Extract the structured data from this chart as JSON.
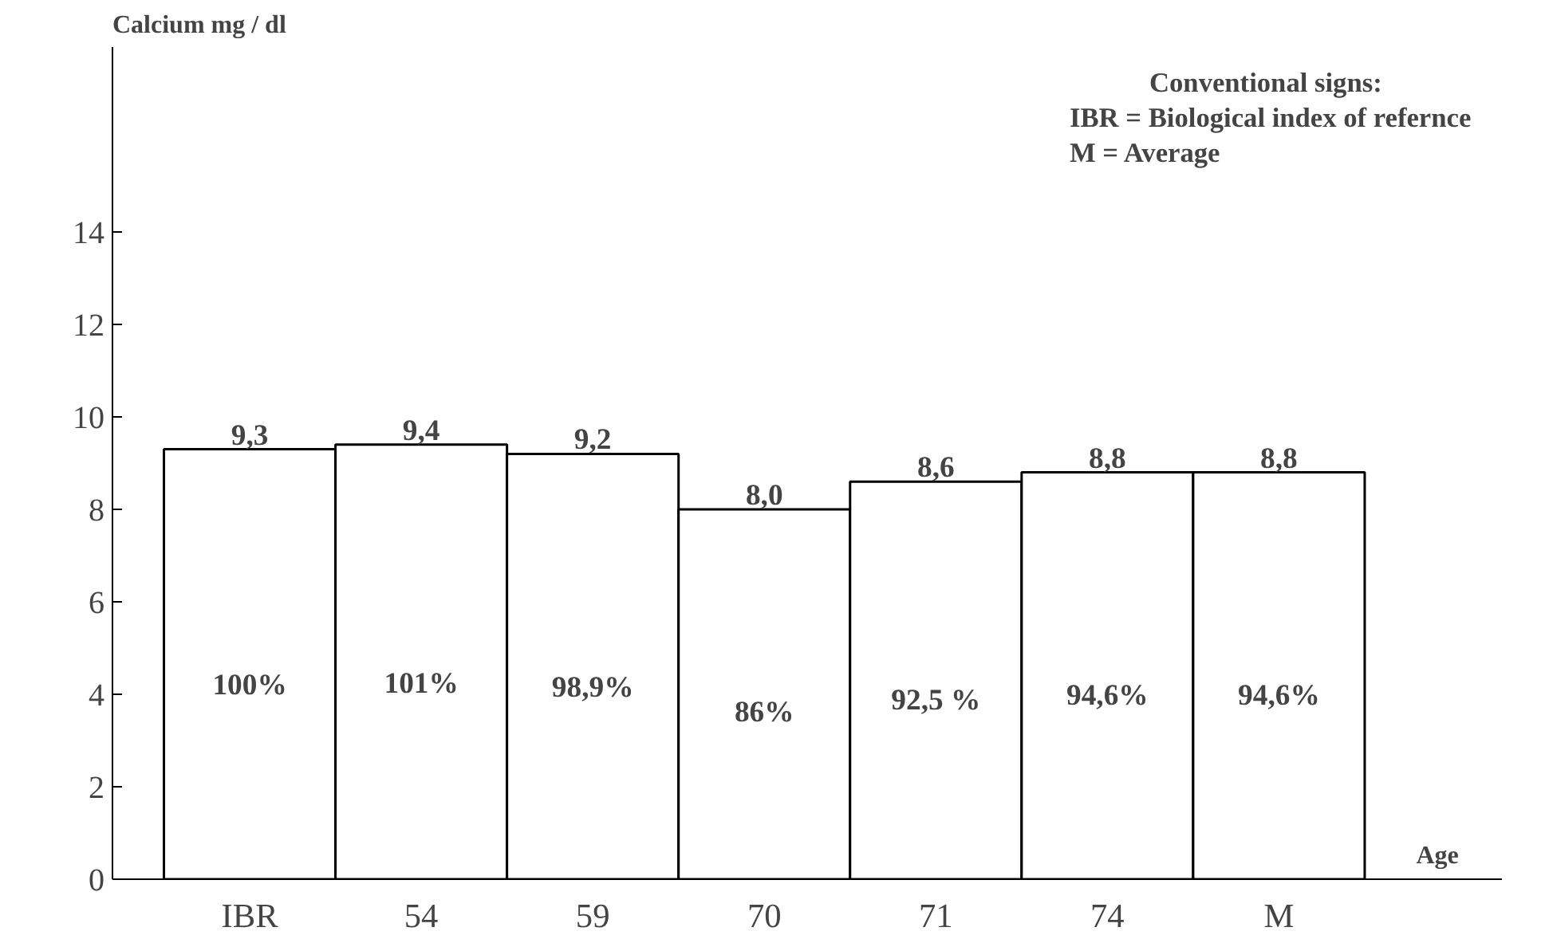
{
  "chart_data": {
    "type": "bar",
    "ylabel": "Calcium mg / dl",
    "xlabel": "Age",
    "categories": [
      "IBR",
      "54",
      "59",
      "70",
      "71",
      "74",
      "M"
    ],
    "values": [
      9.3,
      9.4,
      9.2,
      8.0,
      8.6,
      8.8,
      8.8
    ],
    "value_labels": [
      "9,3",
      "9,4",
      "9,2",
      "8,0",
      "8,6",
      "8,8",
      "8,8"
    ],
    "color": "#ffffff",
    "ylim": [
      0,
      18
    ],
    "yticks": [
      0,
      2,
      4,
      6,
      8,
      10,
      12,
      14
    ],
    "grid": false,
    "annotations": [
      "Conventional signs:",
      "IBR = Biological index of refernce",
      "M = Average",
      "100%",
      "101%",
      "98,9%",
      "86%",
      "92,5 %",
      "94,6%",
      "94,6%"
    ]
  }
}
